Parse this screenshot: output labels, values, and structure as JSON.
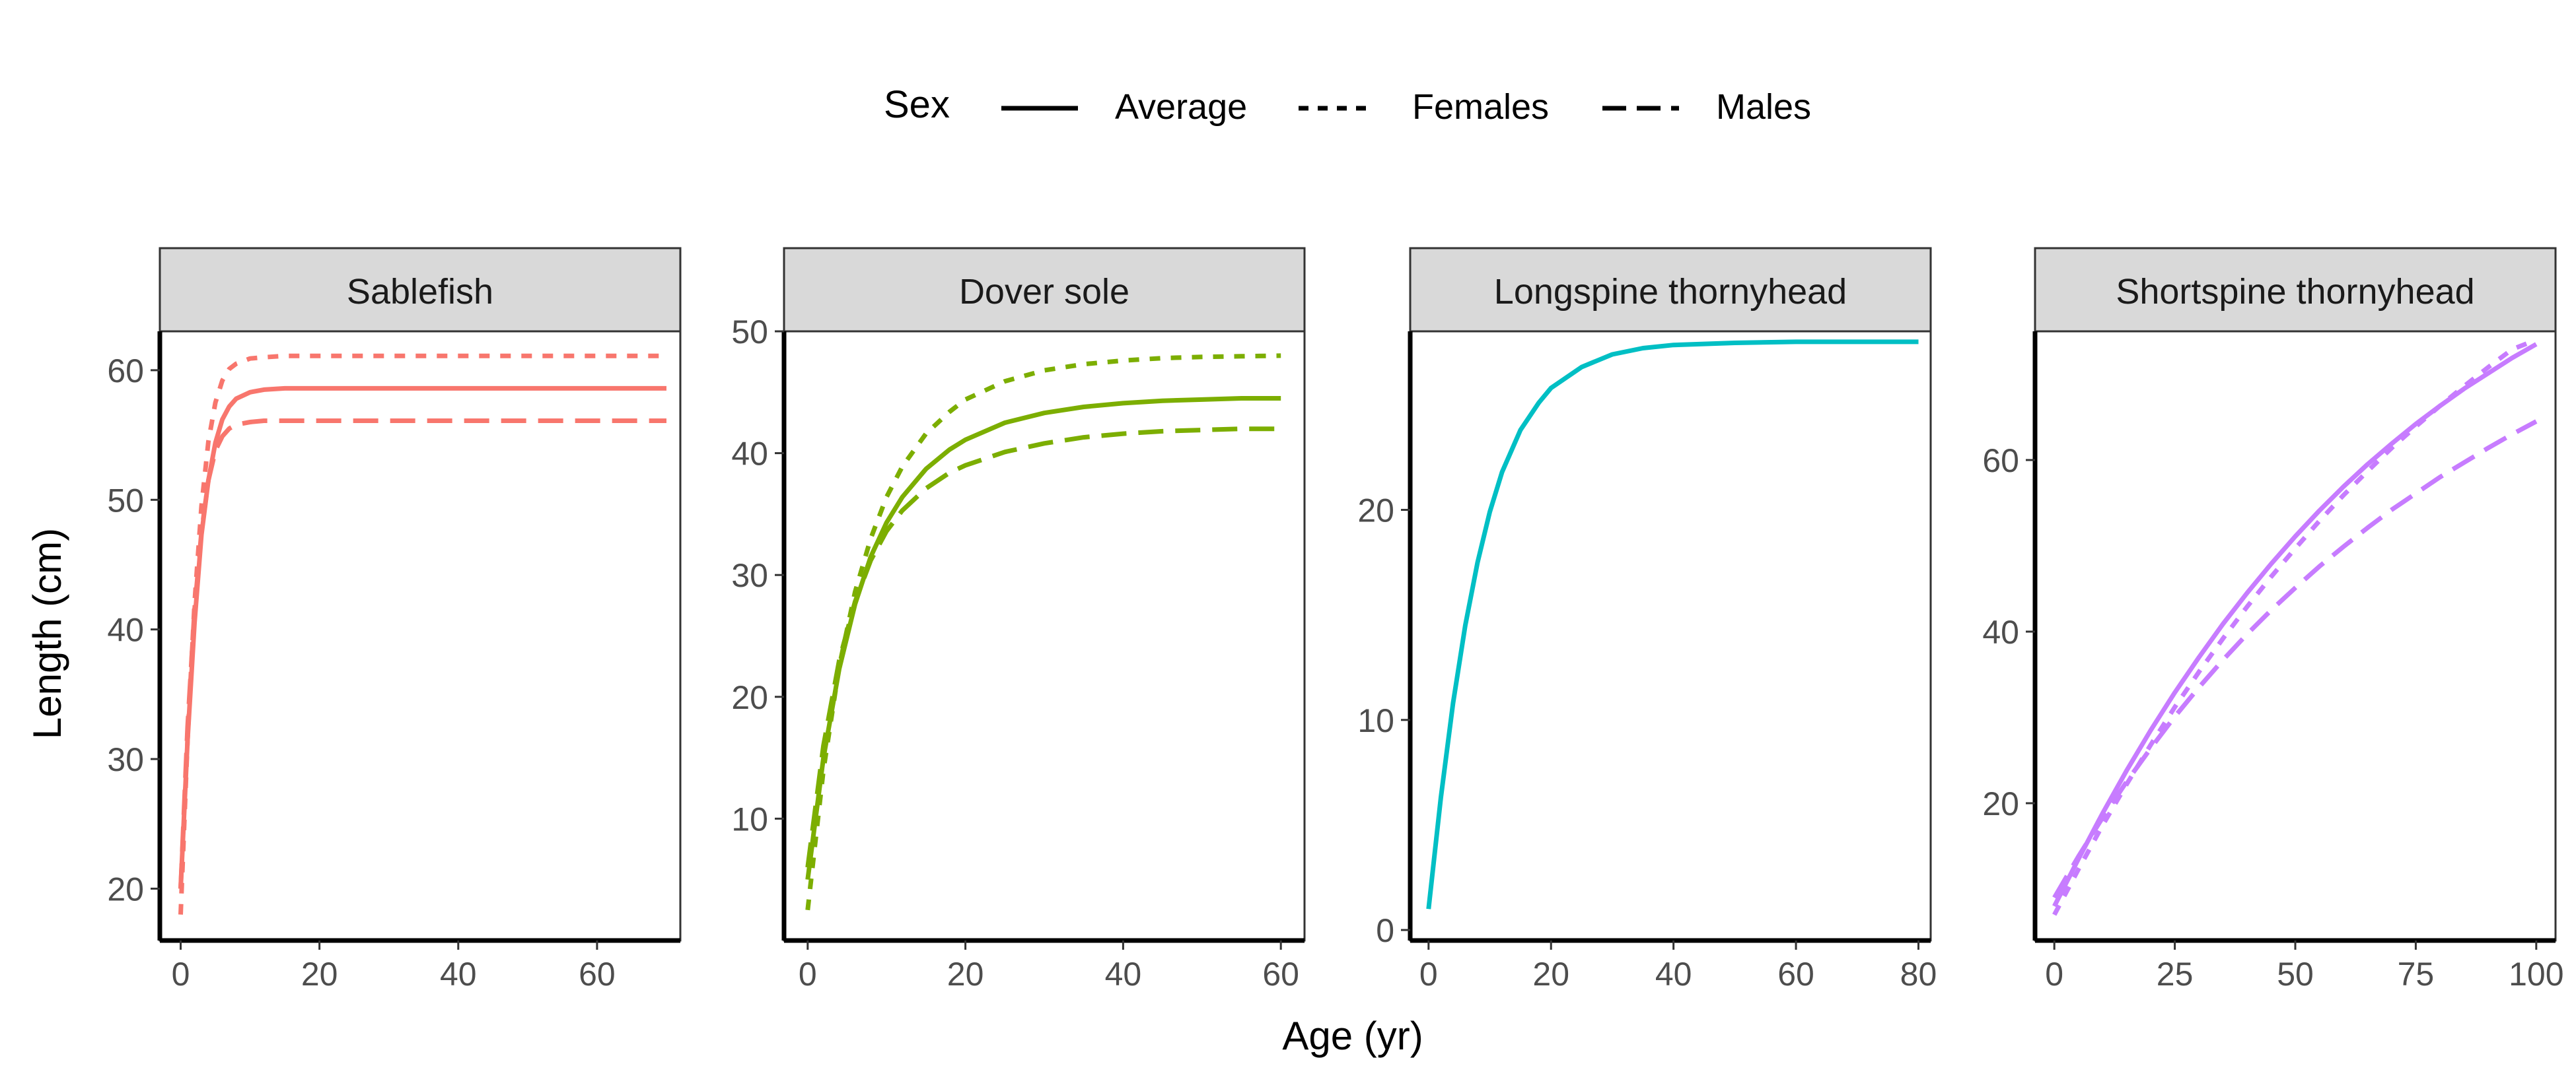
{
  "legend": {
    "title": "Sex",
    "items": [
      {
        "label": "Average",
        "style": "solid"
      },
      {
        "label": "Females",
        "style": "dotted"
      },
      {
        "label": "Males",
        "style": "dashed"
      }
    ]
  },
  "xlabel": "Age (yr)",
  "ylabel": "Length (cm)",
  "chart_data": [
    {
      "type": "line",
      "title": "Sablefish",
      "color": "#F8766D",
      "xlim": [
        -3,
        72
      ],
      "ylim": [
        16,
        63
      ],
      "xticks": [
        0,
        20,
        40,
        60
      ],
      "yticks": [
        20,
        30,
        40,
        50,
        60
      ],
      "x": [
        0,
        1,
        2,
        3,
        4,
        5,
        6,
        7,
        8,
        10,
        12,
        15,
        20,
        30,
        40,
        50,
        60,
        70
      ],
      "series": [
        {
          "name": "Average",
          "style": "solid",
          "values": [
            20,
            31.5,
            40.5,
            47.3,
            51.5,
            54.4,
            56.2,
            57.2,
            57.8,
            58.3,
            58.5,
            58.6,
            58.6,
            58.6,
            58.6,
            58.6,
            58.6,
            58.6
          ]
        },
        {
          "name": "Females",
          "style": "dotted",
          "values": [
            18,
            31.5,
            42,
            49.5,
            54.5,
            57.5,
            59.2,
            60.1,
            60.5,
            60.9,
            61,
            61.1,
            61.1,
            61.1,
            61.1,
            61.1,
            61.1,
            61.1
          ]
        },
        {
          "name": "Males",
          "style": "dashed",
          "values": [
            20,
            32.5,
            41.5,
            47.5,
            51.5,
            53.8,
            54.9,
            55.5,
            55.8,
            56,
            56.1,
            56.1,
            56.1,
            56.1,
            56.1,
            56.1,
            56.1,
            56.1
          ]
        }
      ]
    },
    {
      "type": "line",
      "title": "Dover sole",
      "color": "#7CAE00",
      "xlim": [
        -3,
        63
      ],
      "ylim": [
        0,
        50
      ],
      "xticks": [
        0,
        20,
        40,
        60
      ],
      "yticks": [
        10,
        20,
        30,
        40,
        50
      ],
      "x": [
        0,
        2,
        4,
        6,
        8,
        10,
        12,
        15,
        18,
        20,
        25,
        30,
        35,
        40,
        45,
        50,
        55,
        60
      ],
      "series": [
        {
          "name": "Average",
          "style": "solid",
          "values": [
            5,
            15,
            22.3,
            27.6,
            31.5,
            34.3,
            36.4,
            38.7,
            40.3,
            41.1,
            42.5,
            43.3,
            43.8,
            44.1,
            44.3,
            44.4,
            44.5,
            44.5
          ]
        },
        {
          "name": "Females",
          "style": "dotted",
          "values": [
            2.5,
            14,
            22.5,
            28.6,
            33,
            36.4,
            38.9,
            41.6,
            43.4,
            44.4,
            45.9,
            46.8,
            47.3,
            47.6,
            47.8,
            47.9,
            47.95,
            48
          ]
        },
        {
          "name": "Males",
          "style": "dashed",
          "values": [
            6,
            16,
            23,
            27.8,
            31.2,
            33.6,
            35.3,
            37.1,
            38.4,
            39,
            40.1,
            40.8,
            41.3,
            41.6,
            41.8,
            41.9,
            42,
            42
          ]
        }
      ]
    },
    {
      "type": "line",
      "title": "Longspine thornyhead",
      "color": "#00BFC4",
      "xlim": [
        -3,
        82
      ],
      "ylim": [
        -0.5,
        28.5
      ],
      "xticks": [
        0,
        20,
        40,
        60,
        80
      ],
      "yticks": [
        0,
        10,
        20
      ],
      "x": [
        0,
        2,
        4,
        6,
        8,
        10,
        12,
        15,
        18,
        20,
        25,
        30,
        35,
        40,
        50,
        60,
        70,
        80
      ],
      "series": [
        {
          "name": "Average",
          "style": "solid",
          "values": [
            1,
            6.3,
            10.8,
            14.5,
            17.5,
            19.9,
            21.8,
            23.8,
            25.1,
            25.8,
            26.8,
            27.4,
            27.7,
            27.85,
            27.95,
            28,
            28,
            28
          ]
        }
      ]
    },
    {
      "type": "line",
      "title": "Shortspine thornyhead",
      "color": "#C77CFF",
      "xlim": [
        -4,
        104
      ],
      "ylim": [
        4,
        75
      ],
      "xticks": [
        0,
        25,
        50,
        75,
        100
      ],
      "yticks": [
        20,
        40,
        60
      ],
      "x": [
        0,
        5,
        10,
        15,
        20,
        25,
        30,
        35,
        40,
        45,
        50,
        55,
        60,
        65,
        70,
        75,
        80,
        85,
        90,
        95,
        100
      ],
      "series": [
        {
          "name": "Average",
          "style": "solid",
          "values": [
            8,
            13.5,
            18.8,
            23.8,
            28.5,
            32.9,
            37,
            40.9,
            44.5,
            47.9,
            51.1,
            54.1,
            56.9,
            59.5,
            61.9,
            64.2,
            66.3,
            68.3,
            70.1,
            71.9,
            73.5
          ]
        },
        {
          "name": "Females",
          "style": "dotted",
          "values": [
            7,
            12.3,
            17.4,
            22.2,
            26.8,
            31.2,
            35.3,
            39.2,
            42.9,
            46.4,
            49.7,
            52.9,
            55.9,
            58.7,
            61.4,
            63.9,
            66.3,
            68.6,
            70.8,
            72.9,
            74
          ]
        },
        {
          "name": "Males",
          "style": "dashed",
          "values": [
            9,
            13.8,
            18.3,
            22.5,
            26.4,
            30.1,
            33.5,
            36.7,
            39.7,
            42.5,
            45.1,
            47.6,
            49.9,
            52.1,
            54.2,
            56.1,
            58,
            59.7,
            61.4,
            63,
            64.5
          ]
        }
      ]
    }
  ]
}
